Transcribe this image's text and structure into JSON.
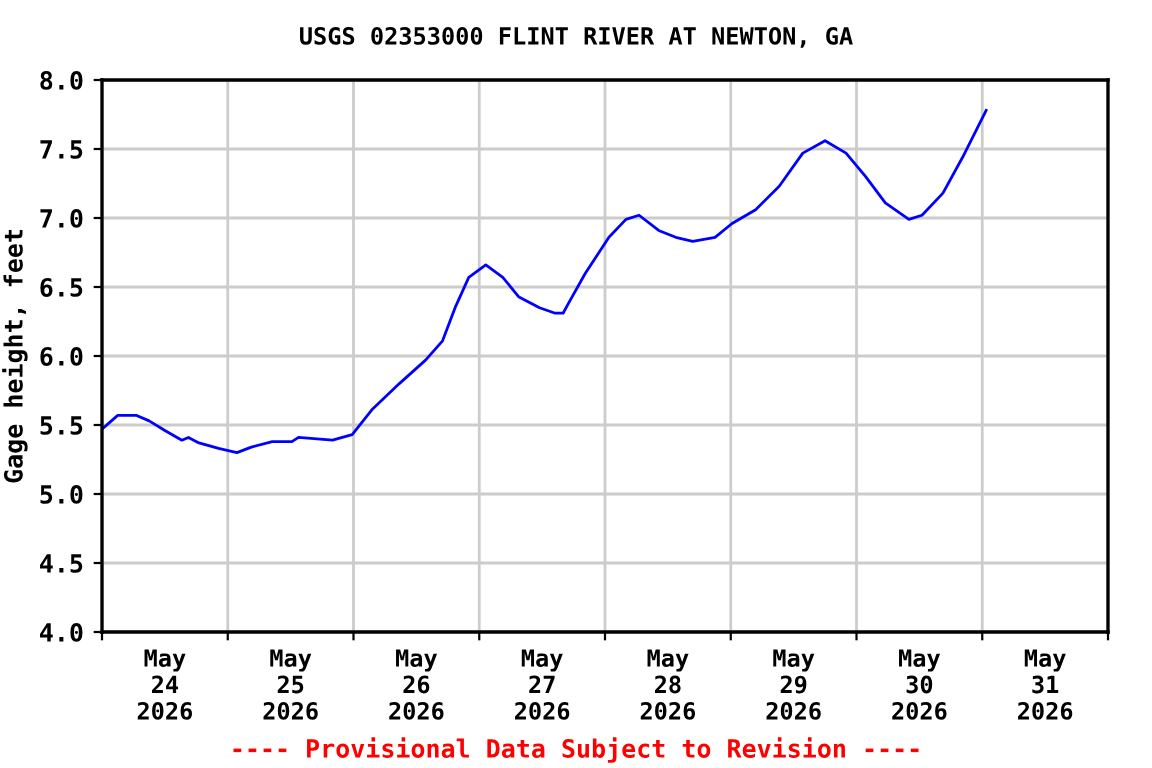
{
  "chart_data": {
    "type": "line",
    "title": "USGS 02353000 FLINT RIVER AT NEWTON, GA",
    "ylabel": "Gage height, feet",
    "annotations": [
      "---- Provisional Data Subject to Revision ----"
    ],
    "x": [
      "2026-05-24T00:00",
      "2026-05-24T03:00",
      "2026-05-24T06:30",
      "2026-05-24T09:00",
      "2026-05-24T12:00",
      "2026-05-24T15:15",
      "2026-05-24T16:30",
      "2026-05-24T18:30",
      "2026-05-24T22:15",
      "2026-05-25T01:45",
      "2026-05-25T04:30",
      "2026-05-25T08:30",
      "2026-05-25T12:15",
      "2026-05-25T13:30",
      "2026-05-25T20:00",
      "2026-05-25T23:45",
      "2026-05-26T03:30",
      "2026-05-26T08:45",
      "2026-05-26T13:45",
      "2026-05-26T17:00",
      "2026-05-26T19:30",
      "2026-05-26T22:00",
      "2026-05-27T01:15",
      "2026-05-27T04:30",
      "2026-05-27T07:30",
      "2026-05-27T11:30",
      "2026-05-27T14:30",
      "2026-05-27T16:00",
      "2026-05-27T17:00",
      "2026-05-27T20:15",
      "2026-05-28T00:45",
      "2026-05-28T04:00",
      "2026-05-28T06:30",
      "2026-05-28T10:15",
      "2026-05-28T13:30",
      "2026-05-28T16:45",
      "2026-05-28T21:00",
      "2026-05-29T00:15",
      "2026-05-29T04:45",
      "2026-05-29T09:15",
      "2026-05-29T13:45",
      "2026-05-29T18:00",
      "2026-05-29T22:00",
      "2026-05-30T01:45",
      "2026-05-30T05:30",
      "2026-05-30T10:00",
      "2026-05-30T12:30",
      "2026-05-30T16:30",
      "2026-05-30T20:15",
      "2026-05-31T00:45"
    ],
    "series": [
      {
        "color": "#0000ff",
        "values": [
          5.47,
          5.57,
          5.57,
          5.53,
          5.46,
          5.39,
          5.41,
          5.37,
          5.33,
          5.3,
          5.34,
          5.38,
          5.38,
          5.41,
          5.39,
          5.43,
          5.61,
          5.8,
          5.97,
          6.11,
          6.36,
          6.57,
          6.66,
          6.57,
          6.43,
          6.35,
          6.31,
          6.31,
          6.38,
          6.6,
          6.86,
          6.99,
          7.02,
          6.91,
          6.86,
          6.83,
          6.86,
          6.96,
          7.06,
          7.23,
          7.47,
          7.56,
          7.47,
          7.3,
          7.11,
          6.99,
          7.02,
          7.18,
          7.44,
          7.78
        ]
      }
    ],
    "xlim": [
      "2026-05-24",
      "2026-06-01"
    ],
    "xticks": [
      {
        "value": "2026-05-24",
        "label": null
      },
      {
        "value": "2026-05-24T12:00",
        "label": "May\n24\n2026"
      },
      {
        "value": "2026-05-25",
        "label": null
      },
      {
        "value": "2026-05-25T12:00",
        "label": "May\n25\n2026"
      },
      {
        "value": "2026-05-26",
        "label": null
      },
      {
        "value": "2026-05-26T12:00",
        "label": "May\n26\n2026"
      },
      {
        "value": "2026-05-27",
        "label": null
      },
      {
        "value": "2026-05-27T12:00",
        "label": "May\n27\n2026"
      },
      {
        "value": "2026-05-28",
        "label": null
      },
      {
        "value": "2026-05-28T12:00",
        "label": "May\n28\n2026"
      },
      {
        "value": "2026-05-29",
        "label": null
      },
      {
        "value": "2026-05-29T12:00",
        "label": "May\n29\n2026"
      },
      {
        "value": "2026-05-30",
        "label": null
      },
      {
        "value": "2026-05-30T12:00",
        "label": "May\n30\n2026"
      },
      {
        "value": "2026-05-31",
        "label": null
      },
      {
        "value": "2026-05-31T12:00",
        "label": "May\n31\n2026"
      },
      {
        "value": "2026-06-01",
        "label": null
      }
    ],
    "ylim": [
      4,
      8
    ],
    "yticks": [
      {
        "value": 4,
        "label": "4.0"
      },
      4.5,
      {
        "value": 5,
        "label": "5.0"
      },
      5.5,
      {
        "value": 6,
        "label": "6.0"
      },
      6.5,
      {
        "value": 7,
        "label": "7.0"
      },
      7.5,
      {
        "value": 8,
        "label": "8.0"
      }
    ],
    "grid": true,
    "marker": "none",
    "line_style": "solid"
  }
}
